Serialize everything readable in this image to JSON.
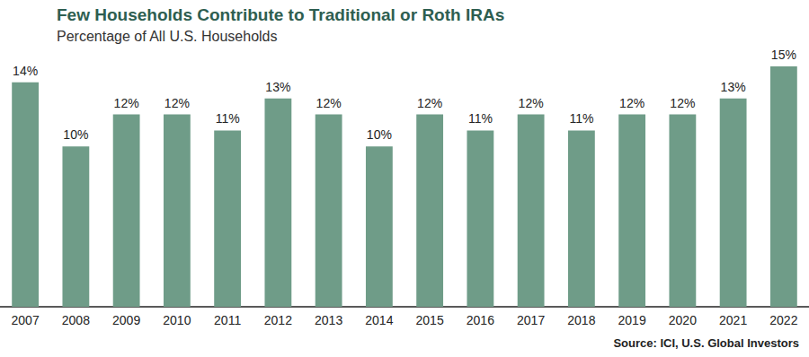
{
  "chart_data": {
    "type": "bar",
    "title": "Few Households Contribute to Traditional or Roth IRAs",
    "subtitle": "Percentage of All U.S. Households",
    "source": "Source: ICI, U.S. Global Investors",
    "categories": [
      "2007",
      "2008",
      "2009",
      "2010",
      "2011",
      "2012",
      "2013",
      "2014",
      "2015",
      "2016",
      "2017",
      "2018",
      "2019",
      "2020",
      "2021",
      "2022"
    ],
    "values": [
      14,
      10,
      12,
      12,
      11,
      13,
      12,
      10,
      12,
      11,
      12,
      11,
      12,
      12,
      13,
      15
    ],
    "value_labels": [
      "14%",
      "10%",
      "12%",
      "12%",
      "11%",
      "13%",
      "12%",
      "10%",
      "12%",
      "11%",
      "12%",
      "11%",
      "12%",
      "12%",
      "13%",
      "15%"
    ],
    "color": "#6f9c88",
    "ylim": [
      0,
      15
    ],
    "grid": false,
    "data_labels": true,
    "tick_labels": "x"
  }
}
